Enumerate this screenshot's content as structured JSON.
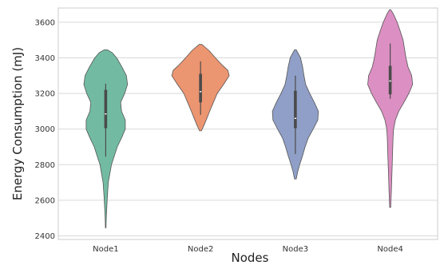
{
  "chart_data": {
    "type": "violin",
    "xlabel": "Nodes",
    "ylabel": "Energy Consumption (mJ)",
    "categories": [
      "Node1",
      "Node2",
      "Node3",
      "Node4"
    ],
    "ylim": [
      2380,
      3680
    ],
    "yticks": [
      2400,
      2600,
      2800,
      3000,
      3200,
      3400,
      3600
    ],
    "grid": "horizontal",
    "colors": [
      "#72bba2",
      "#ec9571",
      "#8f9fc7",
      "#dc8fc2"
    ],
    "violins": [
      {
        "name": "Node1",
        "min": 2445,
        "max": 3445,
        "q1": 3005,
        "median": 3085,
        "q3": 3220,
        "whisker_low": 2845,
        "whisker_high": 3255,
        "profile": [
          [
            2445,
            0.01
          ],
          [
            2500,
            0.02
          ],
          [
            2600,
            0.05
          ],
          [
            2700,
            0.09
          ],
          [
            2800,
            0.2
          ],
          [
            2850,
            0.3
          ],
          [
            2900,
            0.4
          ],
          [
            2950,
            0.55
          ],
          [
            3000,
            0.68
          ],
          [
            3050,
            0.68
          ],
          [
            3100,
            0.55
          ],
          [
            3150,
            0.52
          ],
          [
            3200,
            0.66
          ],
          [
            3250,
            0.76
          ],
          [
            3300,
            0.72
          ],
          [
            3350,
            0.56
          ],
          [
            3400,
            0.38
          ],
          [
            3430,
            0.22
          ],
          [
            3445,
            0.05
          ]
        ]
      },
      {
        "name": "Node2",
        "min": 2990,
        "max": 3475,
        "q1": 3150,
        "median": 3210,
        "q3": 3310,
        "whisker_low": 3080,
        "whisker_high": 3380,
        "profile": [
          [
            2990,
            0.03
          ],
          [
            3020,
            0.12
          ],
          [
            3060,
            0.22
          ],
          [
            3100,
            0.32
          ],
          [
            3150,
            0.45
          ],
          [
            3200,
            0.58
          ],
          [
            3250,
            0.8
          ],
          [
            3300,
            1.0
          ],
          [
            3330,
            0.95
          ],
          [
            3360,
            0.75
          ],
          [
            3400,
            0.52
          ],
          [
            3440,
            0.3
          ],
          [
            3475,
            0.05
          ]
        ]
      },
      {
        "name": "Node3",
        "min": 2720,
        "max": 3445,
        "q1": 3005,
        "median": 3060,
        "q3": 3215,
        "whisker_low": 2860,
        "whisker_high": 3300,
        "profile": [
          [
            2720,
            0.03
          ],
          [
            2760,
            0.08
          ],
          [
            2800,
            0.15
          ],
          [
            2850,
            0.25
          ],
          [
            2900,
            0.34
          ],
          [
            2950,
            0.45
          ],
          [
            3000,
            0.62
          ],
          [
            3050,
            0.78
          ],
          [
            3100,
            0.8
          ],
          [
            3150,
            0.66
          ],
          [
            3200,
            0.5
          ],
          [
            3250,
            0.36
          ],
          [
            3300,
            0.3
          ],
          [
            3350,
            0.25
          ],
          [
            3400,
            0.18
          ],
          [
            3445,
            0.03
          ]
        ]
      },
      {
        "name": "Node4",
        "min": 2560,
        "max": 3670,
        "q1": 3195,
        "median": 3270,
        "q3": 3355,
        "whisker_low": 3170,
        "whisker_high": 3480,
        "profile": [
          [
            2560,
            0.02
          ],
          [
            2650,
            0.04
          ],
          [
            2750,
            0.06
          ],
          [
            2850,
            0.08
          ],
          [
            2950,
            0.1
          ],
          [
            3000,
            0.12
          ],
          [
            3050,
            0.18
          ],
          [
            3100,
            0.3
          ],
          [
            3150,
            0.48
          ],
          [
            3200,
            0.65
          ],
          [
            3250,
            0.78
          ],
          [
            3300,
            0.75
          ],
          [
            3350,
            0.62
          ],
          [
            3400,
            0.55
          ],
          [
            3450,
            0.5
          ],
          [
            3500,
            0.45
          ],
          [
            3550,
            0.35
          ],
          [
            3600,
            0.24
          ],
          [
            3650,
            0.1
          ],
          [
            3670,
            0.02
          ]
        ]
      }
    ]
  }
}
